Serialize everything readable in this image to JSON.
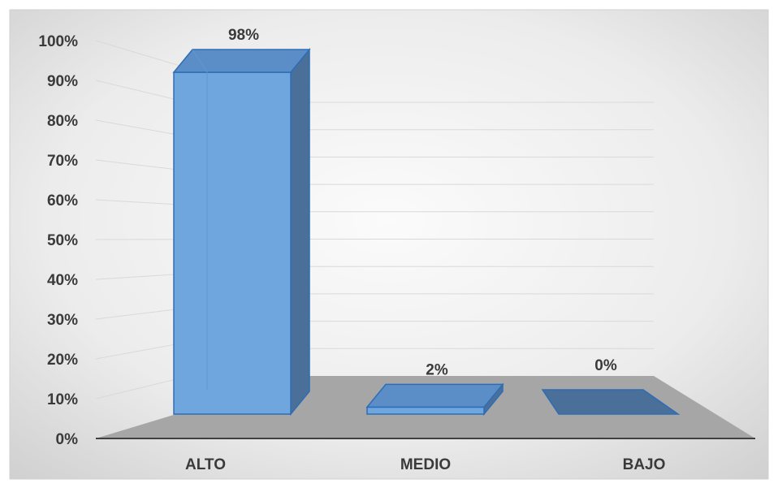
{
  "chart_data": {
    "type": "bar",
    "style": "3d-column",
    "categories": [
      "ALTO",
      "MEDIO",
      "BAJO"
    ],
    "values": [
      98,
      2,
      0
    ],
    "data_labels": [
      "98%",
      "2%",
      "0%"
    ],
    "y_ticks": [
      "0%",
      "10%",
      "20%",
      "30%",
      "40%",
      "50%",
      "60%",
      "70%",
      "80%",
      "90%",
      "100%"
    ],
    "ylim": [
      0,
      100
    ],
    "title": "",
    "xlabel": "",
    "ylabel": "",
    "grid": true,
    "legend": "none",
    "colors": {
      "bar_front": "#6fa6de",
      "bar_top": "#5b8ec7",
      "bar_side": "#4a6f99",
      "bar_edge": "#2e6db5",
      "floor": "#a6a6a6",
      "background_light": "#fafafa",
      "background_dark": "#cfcfcf",
      "gridline": "#d9d9d9",
      "axis": "#404040"
    }
  }
}
